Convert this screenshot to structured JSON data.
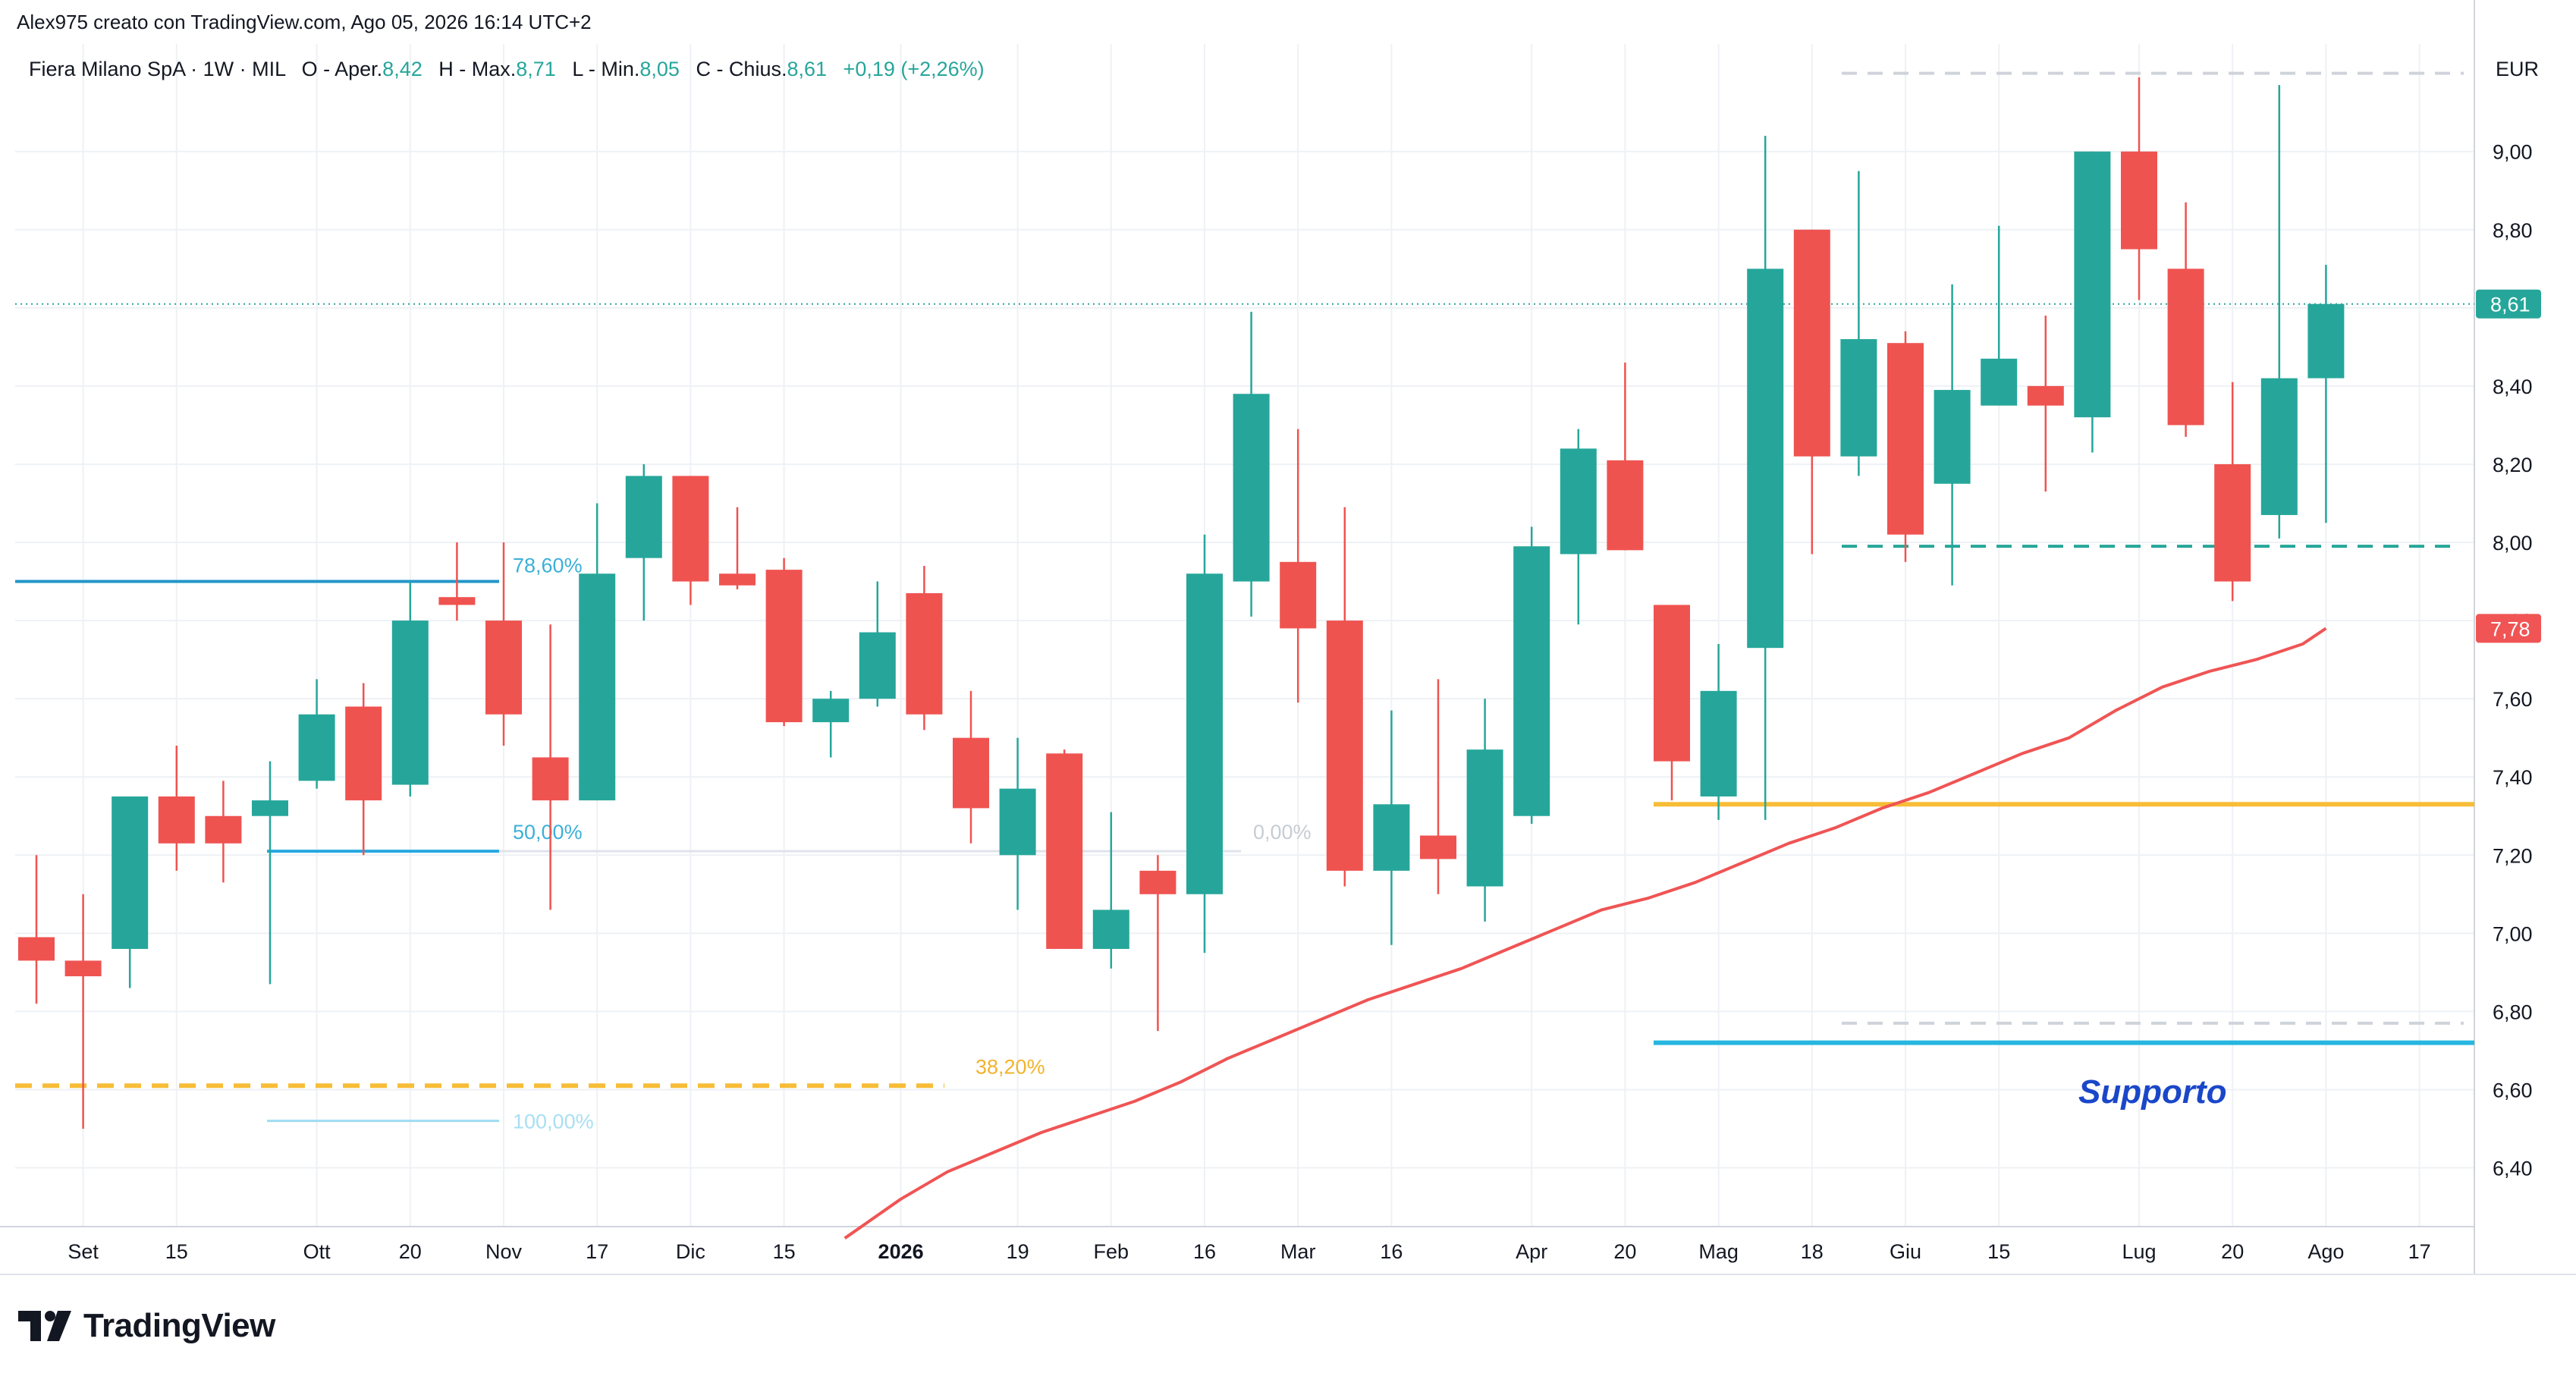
{
  "header": {
    "credit": "Alex975 creato con TradingView.com, Ago 05, 2026 16:14 UTC+2"
  },
  "legend": {
    "symbol": "Fiera Milano SpA · 1W · MIL",
    "open_label": "O - Aper.",
    "open_value": "8,42",
    "high_label": "H - Max.",
    "high_value": "8,71",
    "low_label": "L - Min.",
    "low_value": "8,05",
    "close_label": "C - Chius.",
    "close_value": "8,61",
    "change": "+0,19 (+2,26%)"
  },
  "brand": {
    "name": "TradingView",
    "icon": "tradingview-logo-icon"
  },
  "colors": {
    "up": "#26a69a",
    "down": "#ef5350",
    "ma": "#f05454",
    "fib_blue": "#2196c9",
    "fib_yellow": "#f7bd37",
    "support": "#26b6e0",
    "annotation": "#1a47c9",
    "grid": "#eef1f5",
    "text": "#131722"
  },
  "chart_data": {
    "type": "candlestick",
    "currency": "EUR",
    "y_axis": {
      "min": 6.25,
      "max": 9.3,
      "ticks": [
        "9,00",
        "8,80",
        "8,60",
        "8,40",
        "8,20",
        "8,00",
        "7,80",
        "7,60",
        "7,40",
        "7,20",
        "7,00",
        "6,80",
        "6,60",
        "6,40"
      ],
      "tick_values": [
        9.0,
        8.8,
        8.6,
        8.4,
        8.2,
        8.0,
        7.8,
        7.6,
        7.4,
        7.2,
        7.0,
        6.8,
        6.6,
        6.4
      ]
    },
    "x_axis": {
      "labels": [
        {
          "i": 1,
          "text": "Set",
          "bold": false
        },
        {
          "i": 3,
          "text": "15",
          "bold": false
        },
        {
          "i": 6,
          "text": "Ott",
          "bold": false
        },
        {
          "i": 8,
          "text": "20",
          "bold": false
        },
        {
          "i": 10,
          "text": "Nov",
          "bold": false
        },
        {
          "i": 12,
          "text": "17",
          "bold": false
        },
        {
          "i": 14,
          "text": "Dic",
          "bold": false
        },
        {
          "i": 16,
          "text": "15",
          "bold": false
        },
        {
          "i": 18.5,
          "text": "2026",
          "bold": true
        },
        {
          "i": 21,
          "text": "19",
          "bold": false
        },
        {
          "i": 23,
          "text": "Feb",
          "bold": false
        },
        {
          "i": 25,
          "text": "16",
          "bold": false
        },
        {
          "i": 27,
          "text": "Mar",
          "bold": false
        },
        {
          "i": 29,
          "text": "16",
          "bold": false
        },
        {
          "i": 32,
          "text": "Apr",
          "bold": false
        },
        {
          "i": 34,
          "text": "20",
          "bold": false
        },
        {
          "i": 36,
          "text": "Mag",
          "bold": false
        },
        {
          "i": 38,
          "text": "18",
          "bold": false
        },
        {
          "i": 40,
          "text": "Giu",
          "bold": false
        },
        {
          "i": 42,
          "text": "15",
          "bold": false
        },
        {
          "i": 45,
          "text": "Lug",
          "bold": false
        },
        {
          "i": 47,
          "text": "20",
          "bold": false
        },
        {
          "i": 49,
          "text": "Ago",
          "bold": false
        },
        {
          "i": 51,
          "text": "17",
          "bold": false
        }
      ]
    },
    "candles": [
      {
        "o": 6.99,
        "h": 7.2,
        "l": 6.82,
        "c": 6.93
      },
      {
        "o": 6.93,
        "h": 7.1,
        "l": 6.5,
        "c": 6.89
      },
      {
        "o": 6.96,
        "h": 7.35,
        "l": 6.86,
        "c": 7.35
      },
      {
        "o": 7.35,
        "h": 7.48,
        "l": 7.16,
        "c": 7.23
      },
      {
        "o": 7.3,
        "h": 7.39,
        "l": 7.13,
        "c": 7.23
      },
      {
        "o": 7.3,
        "h": 7.44,
        "l": 6.87,
        "c": 7.34
      },
      {
        "o": 7.39,
        "h": 7.65,
        "l": 7.37,
        "c": 7.56
      },
      {
        "o": 7.58,
        "h": 7.64,
        "l": 7.2,
        "c": 7.34
      },
      {
        "o": 7.38,
        "h": 7.9,
        "l": 7.35,
        "c": 7.8
      },
      {
        "o": 7.86,
        "h": 8.0,
        "l": 7.8,
        "c": 7.84
      },
      {
        "o": 7.8,
        "h": 8.0,
        "l": 7.48,
        "c": 7.56
      },
      {
        "o": 7.45,
        "h": 7.79,
        "l": 7.06,
        "c": 7.34
      },
      {
        "o": 7.34,
        "h": 8.1,
        "l": 7.34,
        "c": 7.92
      },
      {
        "o": 7.96,
        "h": 8.2,
        "l": 7.8,
        "c": 8.17
      },
      {
        "o": 8.17,
        "h": 8.17,
        "l": 7.84,
        "c": 7.9
      },
      {
        "o": 7.92,
        "h": 8.09,
        "l": 7.88,
        "c": 7.89
      },
      {
        "o": 7.93,
        "h": 7.96,
        "l": 7.53,
        "c": 7.54
      },
      {
        "o": 7.54,
        "h": 7.62,
        "l": 7.45,
        "c": 7.6
      },
      {
        "o": 7.6,
        "h": 7.9,
        "l": 7.58,
        "c": 7.77
      },
      {
        "o": 7.87,
        "h": 7.94,
        "l": 7.52,
        "c": 7.56
      },
      {
        "o": 7.5,
        "h": 7.62,
        "l": 7.23,
        "c": 7.32
      },
      {
        "o": 7.2,
        "h": 7.5,
        "l": 7.06,
        "c": 7.37
      },
      {
        "o": 7.46,
        "h": 7.47,
        "l": 6.96,
        "c": 6.96
      },
      {
        "o": 6.96,
        "h": 7.31,
        "l": 6.91,
        "c": 7.06
      },
      {
        "o": 7.16,
        "h": 7.2,
        "l": 6.75,
        "c": 7.1
      },
      {
        "o": 7.1,
        "h": 8.02,
        "l": 6.95,
        "c": 7.92
      },
      {
        "o": 7.9,
        "h": 8.59,
        "l": 7.81,
        "c": 8.38
      },
      {
        "o": 7.95,
        "h": 8.29,
        "l": 7.59,
        "c": 7.78
      },
      {
        "o": 7.8,
        "h": 8.09,
        "l": 7.12,
        "c": 7.16
      },
      {
        "o": 7.16,
        "h": 7.57,
        "l": 6.97,
        "c": 7.33
      },
      {
        "o": 7.25,
        "h": 7.65,
        "l": 7.1,
        "c": 7.19
      },
      {
        "o": 7.12,
        "h": 7.6,
        "l": 7.03,
        "c": 7.47
      },
      {
        "o": 7.3,
        "h": 8.04,
        "l": 7.28,
        "c": 7.99
      },
      {
        "o": 7.97,
        "h": 8.29,
        "l": 7.79,
        "c": 8.24
      },
      {
        "o": 8.21,
        "h": 8.46,
        "l": 7.98,
        "c": 7.98
      },
      {
        "o": 7.84,
        "h": 7.84,
        "l": 7.34,
        "c": 7.44
      },
      {
        "o": 7.35,
        "h": 7.74,
        "l": 7.29,
        "c": 7.62
      },
      {
        "o": 7.73,
        "h": 9.04,
        "l": 7.29,
        "c": 8.7
      },
      {
        "o": 8.8,
        "h": 8.8,
        "l": 7.97,
        "c": 8.22
      },
      {
        "o": 8.22,
        "h": 8.95,
        "l": 8.17,
        "c": 8.52
      },
      {
        "o": 8.51,
        "h": 8.54,
        "l": 7.95,
        "c": 8.02
      },
      {
        "o": 8.15,
        "h": 8.66,
        "l": 7.89,
        "c": 8.39
      },
      {
        "o": 8.35,
        "h": 8.81,
        "l": 8.35,
        "c": 8.47
      },
      {
        "o": 8.4,
        "h": 8.58,
        "l": 8.13,
        "c": 8.35
      },
      {
        "o": 8.32,
        "h": 9.0,
        "l": 8.23,
        "c": 9.0
      },
      {
        "o": 9.0,
        "h": 9.19,
        "l": 8.62,
        "c": 8.75
      },
      {
        "o": 8.7,
        "h": 8.87,
        "l": 8.27,
        "c": 8.3
      },
      {
        "o": 8.2,
        "h": 8.41,
        "l": 7.85,
        "c": 7.9
      },
      {
        "o": 8.07,
        "h": 9.17,
        "l": 8.01,
        "c": 8.42
      },
      {
        "o": 8.42,
        "h": 8.71,
        "l": 8.05,
        "c": 8.61
      }
    ],
    "moving_average": {
      "last_value": 7.78,
      "label": "7,78",
      "points": [
        [
          17.3,
          6.22
        ],
        [
          18.5,
          6.32
        ],
        [
          19.5,
          6.39
        ],
        [
          20.5,
          6.44
        ],
        [
          21.5,
          6.49
        ],
        [
          22.5,
          6.53
        ],
        [
          23.5,
          6.57
        ],
        [
          24.5,
          6.62
        ],
        [
          25.5,
          6.68
        ],
        [
          26.5,
          6.73
        ],
        [
          27.5,
          6.78
        ],
        [
          28.5,
          6.83
        ],
        [
          29.5,
          6.87
        ],
        [
          30.5,
          6.91
        ],
        [
          31.5,
          6.96
        ],
        [
          32.5,
          7.01
        ],
        [
          33.5,
          7.06
        ],
        [
          34.5,
          7.09
        ],
        [
          35.5,
          7.13
        ],
        [
          36.5,
          7.18
        ],
        [
          37.5,
          7.23
        ],
        [
          38.5,
          7.27
        ],
        [
          39.5,
          7.32
        ],
        [
          40.5,
          7.36
        ],
        [
          41.5,
          7.41
        ],
        [
          42.5,
          7.46
        ],
        [
          43.5,
          7.5
        ],
        [
          44.5,
          7.57
        ],
        [
          45.5,
          7.63
        ],
        [
          46.5,
          7.67
        ],
        [
          47.5,
          7.7
        ],
        [
          48.5,
          7.74
        ],
        [
          49,
          7.78
        ]
      ]
    },
    "last_price": {
      "value": 8.61,
      "label": "8,61"
    },
    "annotations": {
      "fib_levels": [
        {
          "label": "78,60%",
          "value": 7.9,
          "color": "blue"
        },
        {
          "label": "50,00%",
          "value": 7.21,
          "color": "blue"
        },
        {
          "label": "38,20%",
          "value": 6.61,
          "color": "yellow"
        },
        {
          "label": "100,00%",
          "value": 6.52,
          "color": "lightblue"
        },
        {
          "label": "0,00%",
          "value": 7.21,
          "color": "gray"
        }
      ],
      "support_label": "Supporto",
      "support_levels": [
        7.33,
        6.72
      ]
    }
  }
}
